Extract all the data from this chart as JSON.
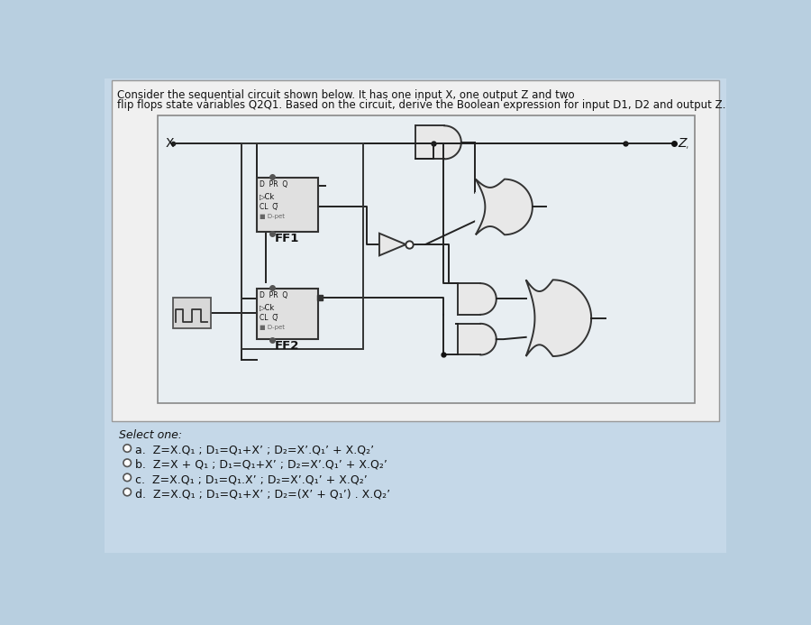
{
  "title_line1": "Consider the sequential circuit shown below. It has one input X, one output Z and two",
  "title_line2": "flip flops state variables Q2Q1. Based on the circuit, derive the Boolean expression for input D1, D2 and output Z.",
  "bg_color": "#b8cfe0",
  "panel_bg": "#dce8f0",
  "circuit_bg": "#e8eef2",
  "text_color": "#111111",
  "select_one": "Select one:",
  "option_a": "a.  Z=X.Q₁ ; D₁=Q₁+X’ ; D₂=X’.Q₁’ + X.Q₂’",
  "option_b": "b.  Z=X + Q₁ ; D₁=Q₁+X’ ; D₂=X’.Q₁’ + X.Q₂’",
  "option_c": "c.  Z=X.Q₁ ; D₁=Q₁.X’ ; D₂=X’.Q₁’ + X.Q₂’",
  "option_d": "d.  Z=X.Q₁ ; D₁=Q₁+X’ ; D₂=(X’ + Q₁’) . X.Q₂’"
}
